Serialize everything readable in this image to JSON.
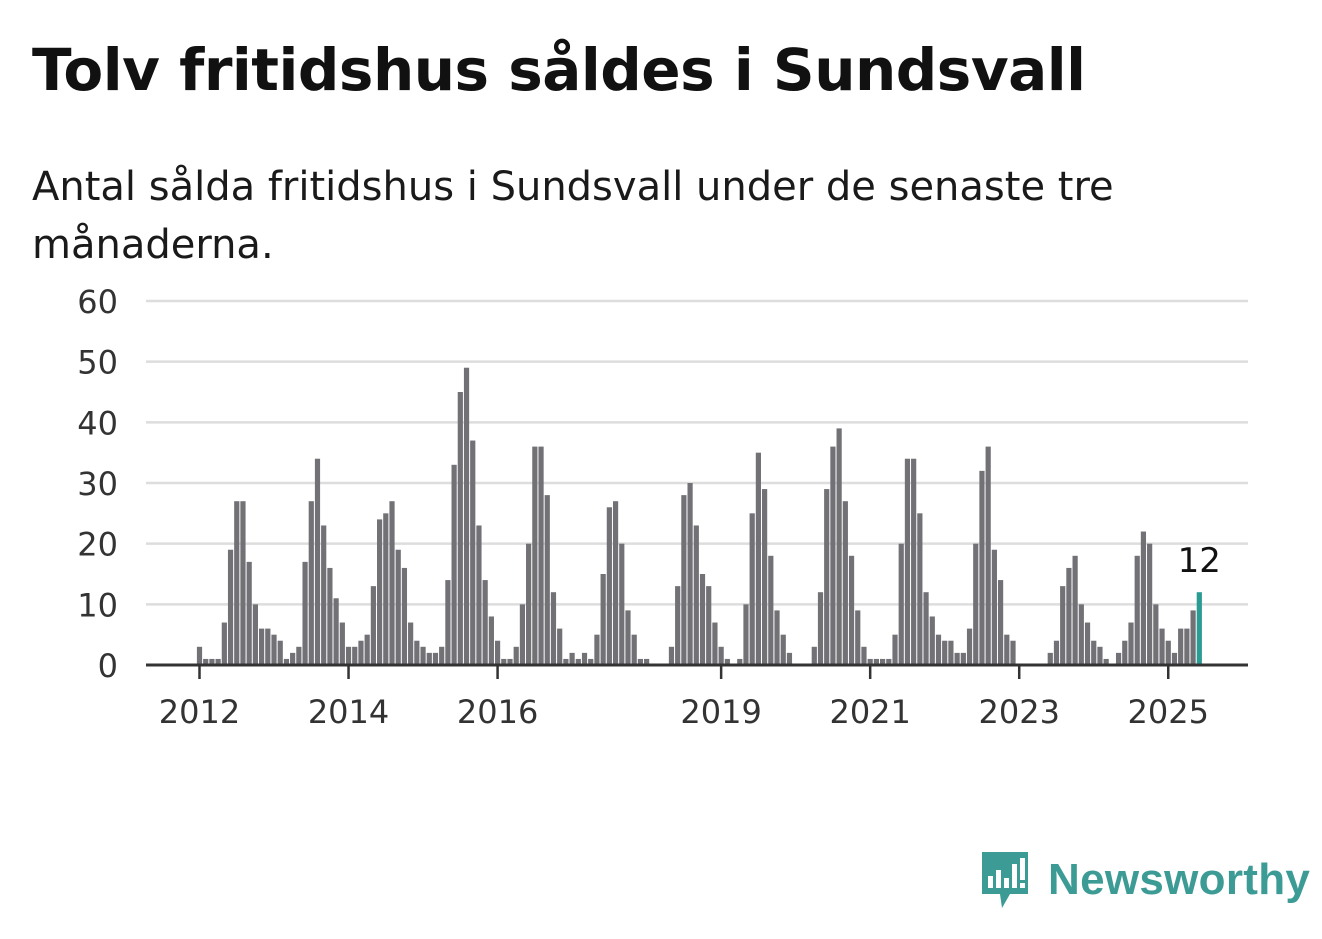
{
  "title": "Tolv fritidshus såldes i Sundsvall",
  "subtitle": "Antal sålda fritidshus i Sundsvall under de senaste tre månaderna.",
  "brand": {
    "name": "Newsworthy",
    "icon": "newsworthy-logo-icon",
    "color": "#3d9b96"
  },
  "chart_data": {
    "type": "bar",
    "title": "",
    "xlabel": "",
    "ylabel": "",
    "ylim": [
      0,
      60
    ],
    "y_ticks": [
      0,
      10,
      20,
      30,
      40,
      50,
      60
    ],
    "x_ticks": [
      {
        "label": "2012",
        "index": 0
      },
      {
        "label": "2014",
        "index": 24
      },
      {
        "label": "2016",
        "index": 48
      },
      {
        "label": "2019",
        "index": 84
      },
      {
        "label": "2021",
        "index": 108
      },
      {
        "label": "2023",
        "index": 132
      },
      {
        "label": "2025",
        "index": 156
      }
    ],
    "grid": true,
    "start_month": "2012-01",
    "bar_color": "#727176",
    "highlight_color": "#2b9c94",
    "highlight_label": "12",
    "values": [
      3,
      1,
      1,
      1,
      7,
      19,
      27,
      27,
      17,
      10,
      6,
      6,
      5,
      4,
      1,
      2,
      3,
      17,
      27,
      34,
      23,
      16,
      11,
      7,
      3,
      3,
      4,
      5,
      13,
      24,
      25,
      27,
      19,
      16,
      7,
      4,
      3,
      2,
      2,
      3,
      14,
      33,
      45,
      49,
      37,
      23,
      14,
      8,
      4,
      1,
      1,
      3,
      10,
      20,
      36,
      36,
      28,
      12,
      6,
      1,
      2,
      1,
      2,
      1,
      5,
      15,
      26,
      27,
      20,
      9,
      5,
      1,
      1,
      0,
      0,
      0,
      3,
      13,
      28,
      30,
      23,
      15,
      13,
      7,
      3,
      1,
      0,
      1,
      10,
      25,
      35,
      29,
      18,
      9,
      5,
      2,
      0,
      0,
      0,
      3,
      12,
      29,
      36,
      39,
      27,
      18,
      9,
      3,
      1,
      1,
      1,
      1,
      5,
      20,
      34,
      34,
      25,
      12,
      8,
      5,
      4,
      4,
      2,
      2,
      6,
      20,
      32,
      36,
      19,
      14,
      5,
      4,
      0,
      0,
      0,
      0,
      0,
      2,
      4,
      13,
      16,
      18,
      10,
      7,
      4,
      3,
      1,
      0,
      2,
      4,
      7,
      18,
      22,
      20,
      10,
      6,
      4,
      2,
      6,
      6,
      9,
      12
    ]
  }
}
